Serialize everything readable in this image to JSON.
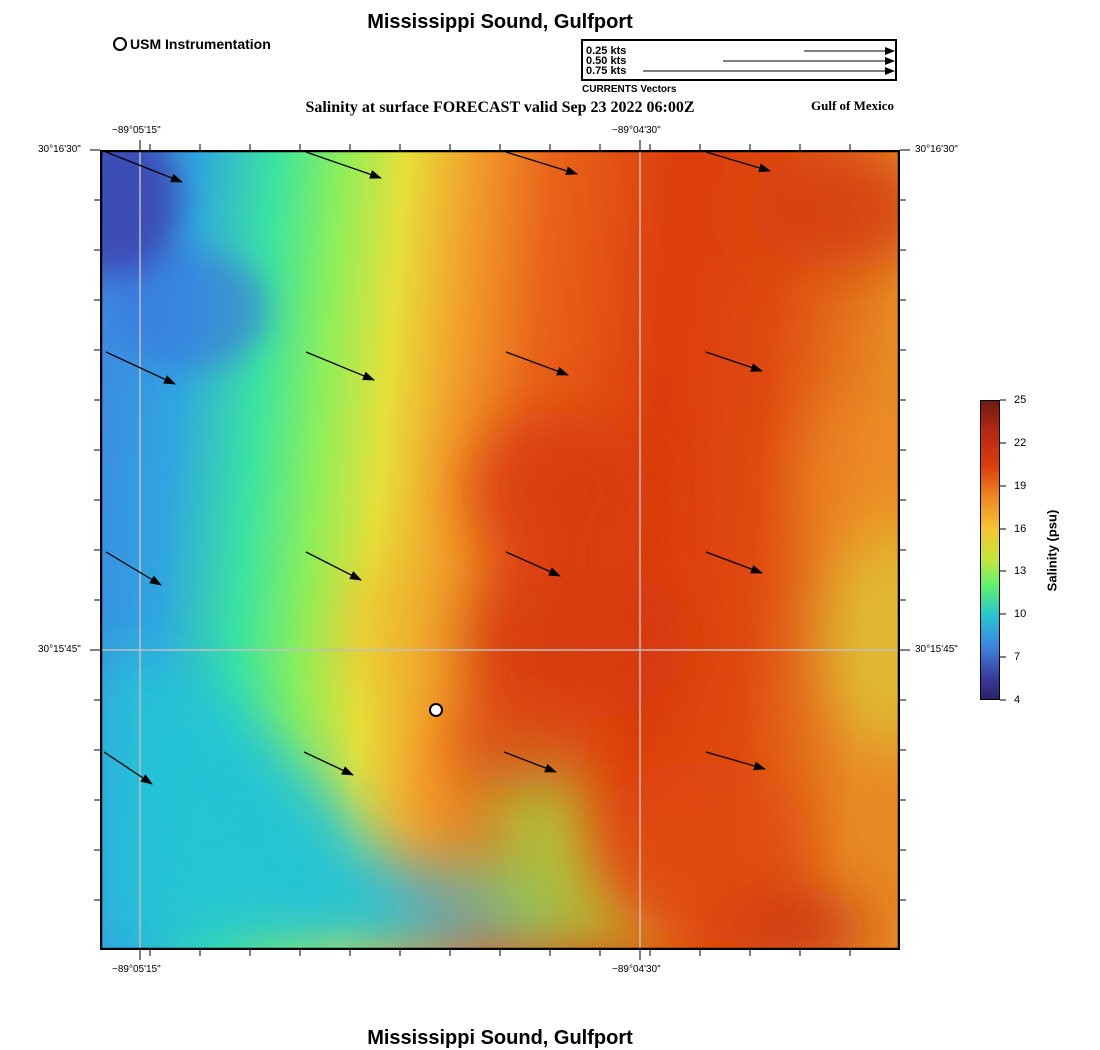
{
  "header": {
    "title": "Mississippi Sound, Gulfport",
    "subtitle": "Salinity at surface FORECAST valid Sep 23 2022 06:00Z",
    "region": "Gulf of Mexico"
  },
  "legend": {
    "instrumentation_label": "USM Instrumentation"
  },
  "vector_reference": {
    "labels": [
      "0.25 kts",
      "0.50 kts",
      "0.75 kts"
    ],
    "caption": "CURRENTS Vectors"
  },
  "axes": {
    "top_lon_labels": [
      "−89°05'15\"",
      "−89°04'30\""
    ],
    "bottom_lon_labels": [
      "−89°05'15\"",
      "−89°04'30\""
    ],
    "left_lat_labels": [
      "30°16'30\"",
      "30°15'45\""
    ],
    "right_lat_labels": [
      "30°16'30\"",
      "30°15'45\""
    ]
  },
  "colorbar": {
    "title": "Salinity (psu)",
    "ticks": [
      "25",
      "22",
      "19",
      "16",
      "13",
      "10",
      "7",
      "4"
    ],
    "colors": [
      "#6e1a10",
      "#b42814",
      "#dc3d0c",
      "#f08c23",
      "#f6c431",
      "#c6e63a",
      "#5ef070",
      "#25c5d2",
      "#3d86e0",
      "#3b3fa0",
      "#2a1f6a"
    ]
  },
  "footer": {
    "title": "Mississippi Sound, Gulfport"
  }
}
